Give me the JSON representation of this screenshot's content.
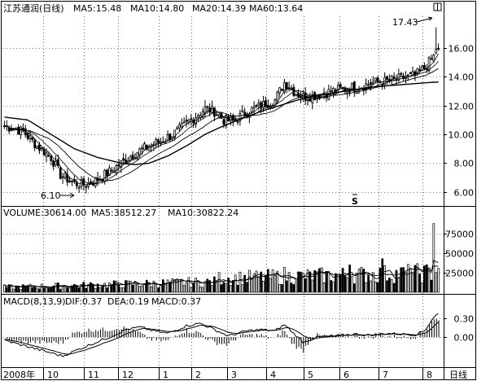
{
  "colors": {
    "up": "#000000",
    "down": "#000000",
    "ma_line": "#000000",
    "frame": "#000000",
    "grid": "#000000",
    "background": "#ffffff"
  },
  "price_header": {
    "stock": "江苏通润(日线)",
    "ma5": "MA5:15.48",
    "ma10": "MA10:14.80",
    "ma20": "MA20:14.39",
    "ma60": "MA60:13.64"
  },
  "volume_header": {
    "volume": "VOLUME:30614.00",
    "ma5": "MA5:38512.27",
    "ma10": "MA10:30822.24"
  },
  "macd_header": {
    "name": "MACD(8,13,9)",
    "dif": "DIF:0.37",
    "dea": "DEA:0.19",
    "macd": "MACD:0.37"
  },
  "annotations": {
    "high": "17.43",
    "low": "6.10",
    "s_marker": "S"
  },
  "period_label": "日线",
  "chart_data": [
    {
      "type": "candlestick",
      "panel": "price",
      "y_ticks": [
        "6.00",
        "8.00",
        "10.00",
        "12.00",
        "14.00",
        "16.00"
      ],
      "y_values": [
        6,
        8,
        10,
        12,
        14,
        16
      ],
      "ylim": [
        5.2,
        18.2
      ],
      "x_axis": [
        "2008年",
        "10",
        "11",
        "12",
        "1",
        "2",
        "3",
        "4",
        "5",
        "6",
        "7",
        "8"
      ],
      "high_annotation": 17.43,
      "low_annotation": 6.1,
      "moving_averages": [
        "MA5",
        "MA10",
        "MA20",
        "MA60"
      ],
      "trend_anchors": [
        [
          0,
          10.6
        ],
        [
          8,
          10.2
        ],
        [
          14,
          9.2
        ],
        [
          20,
          8.4
        ],
        [
          24,
          7.2
        ],
        [
          30,
          6.6
        ],
        [
          35,
          6.5
        ],
        [
          40,
          6.9
        ],
        [
          45,
          7.4
        ],
        [
          50,
          8.0
        ],
        [
          56,
          8.7
        ],
        [
          62,
          9.2
        ],
        [
          68,
          9.6
        ],
        [
          74,
          10.2
        ],
        [
          80,
          11.0
        ],
        [
          86,
          11.8
        ],
        [
          90,
          11.6
        ],
        [
          94,
          11.0
        ],
        [
          98,
          10.9
        ],
        [
          104,
          11.6
        ],
        [
          110,
          12.0
        ],
        [
          116,
          12.4
        ],
        [
          120,
          13.6
        ],
        [
          124,
          13.0
        ],
        [
          128,
          12.6
        ],
        [
          134,
          12.7
        ],
        [
          140,
          13.0
        ],
        [
          146,
          13.2
        ],
        [
          152,
          13.3
        ],
        [
          158,
          13.6
        ],
        [
          164,
          13.7
        ],
        [
          170,
          13.9
        ],
        [
          176,
          14.1
        ],
        [
          180,
          14.6
        ],
        [
          184,
          15.4
        ],
        [
          186,
          16.6
        ]
      ],
      "ma60_anchors": [
        [
          0,
          11.2
        ],
        [
          10,
          11.0
        ],
        [
          20,
          10.0
        ],
        [
          30,
          9.0
        ],
        [
          40,
          8.4
        ],
        [
          50,
          8.0
        ],
        [
          56,
          7.9
        ],
        [
          62,
          8.0
        ],
        [
          70,
          8.5
        ],
        [
          78,
          9.2
        ],
        [
          86,
          10.0
        ],
        [
          94,
          10.6
        ],
        [
          102,
          11.1
        ],
        [
          110,
          11.6
        ],
        [
          118,
          12.0
        ],
        [
          126,
          12.4
        ],
        [
          134,
          12.7
        ],
        [
          142,
          12.9
        ],
        [
          150,
          13.1
        ],
        [
          158,
          13.3
        ],
        [
          166,
          13.4
        ],
        [
          174,
          13.5
        ],
        [
          182,
          13.6
        ],
        [
          186,
          13.64
        ]
      ]
    },
    {
      "type": "bar",
      "panel": "volume",
      "y_ticks": [
        "25000",
        "50000",
        "75000"
      ],
      "y_values": [
        25000,
        50000,
        75000
      ],
      "ylim": [
        0,
        95000
      ],
      "ma_lines": [
        "MA5",
        "MA10"
      ],
      "spikes": [
        [
          120,
          32000
        ],
        [
          148,
          35000
        ],
        [
          162,
          43000
        ],
        [
          174,
          30000
        ],
        [
          184,
          88000
        ],
        [
          186,
          30614
        ]
      ]
    },
    {
      "type": "bar",
      "panel": "macd",
      "y_ticks": [
        "0.00",
        "0.30"
      ],
      "y_values": [
        0,
        0.3
      ],
      "ylim": [
        -0.45,
        0.48
      ],
      "lines": [
        "DIF",
        "DEA"
      ],
      "dif_anchors": [
        [
          0,
          -0.05
        ],
        [
          10,
          -0.15
        ],
        [
          20,
          -0.25
        ],
        [
          25,
          -0.3
        ],
        [
          30,
          -0.22
        ],
        [
          38,
          -0.1
        ],
        [
          45,
          0.0
        ],
        [
          52,
          0.12
        ],
        [
          58,
          0.16
        ],
        [
          64,
          0.1
        ],
        [
          70,
          0.06
        ],
        [
          78,
          0.18
        ],
        [
          84,
          0.22
        ],
        [
          90,
          0.12
        ],
        [
          96,
          0.02
        ],
        [
          104,
          0.1
        ],
        [
          110,
          0.12
        ],
        [
          116,
          0.1
        ],
        [
          120,
          0.2
        ],
        [
          124,
          0.06
        ],
        [
          128,
          -0.08
        ],
        [
          134,
          0.0
        ],
        [
          142,
          0.02
        ],
        [
          150,
          0.05
        ],
        [
          156,
          0.03
        ],
        [
          164,
          0.06
        ],
        [
          170,
          0.05
        ],
        [
          176,
          0.04
        ],
        [
          180,
          0.1
        ],
        [
          184,
          0.32
        ],
        [
          186,
          0.37
        ]
      ]
    }
  ]
}
